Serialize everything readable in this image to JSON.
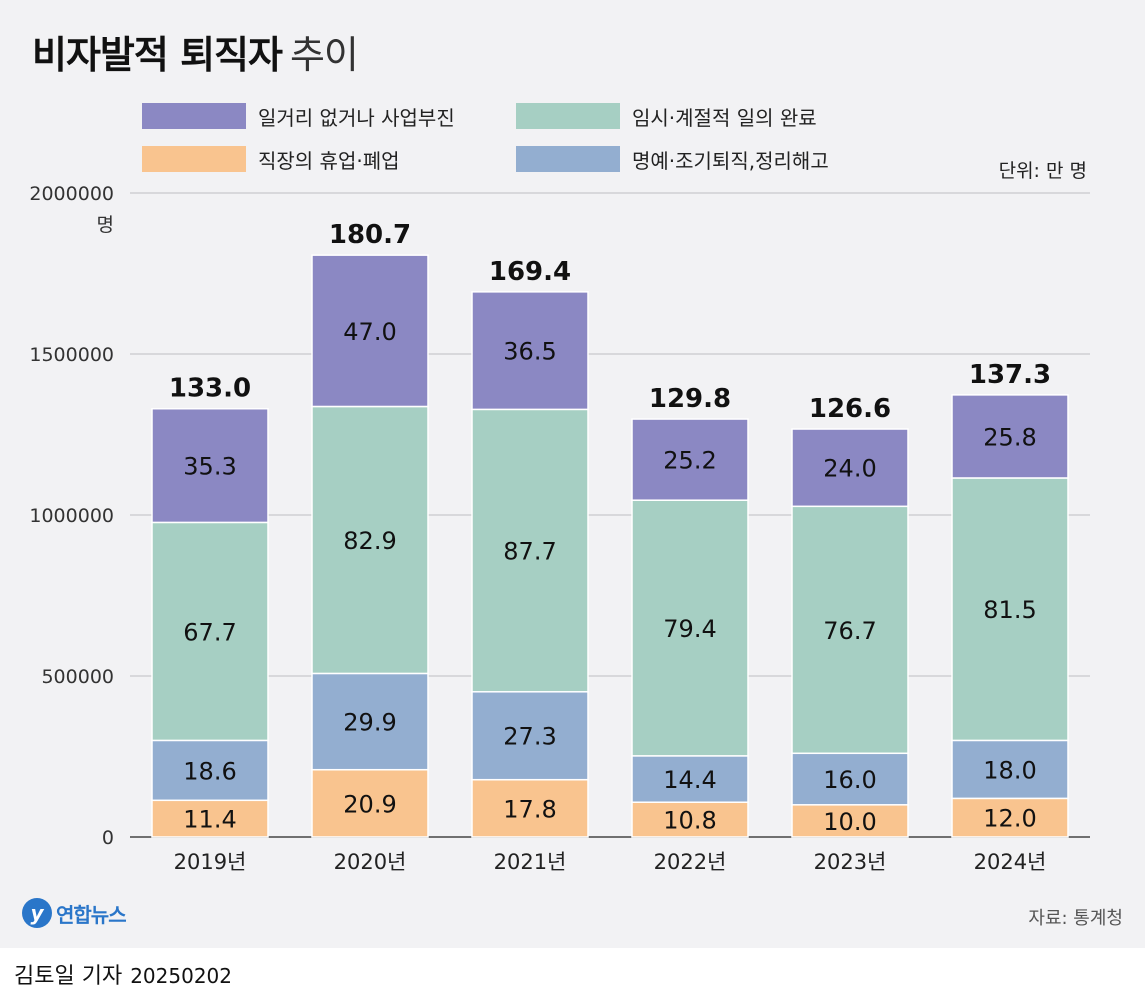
{
  "header": {
    "title": "비자발적 퇴직자",
    "subtitle": "추이"
  },
  "legend": [
    {
      "label": "일거리 없거나 사업부진",
      "color": "#8b88c3"
    },
    {
      "label": "임시·계절적 일의 완료",
      "color": "#a6cfc3"
    },
    {
      "label": "직장의 휴업·폐업",
      "color": "#f9c48f"
    },
    {
      "label": "명예·조기퇴직,정리해고",
      "color": "#93aed0"
    }
  ],
  "unit": "단위: 만 명",
  "source": "자료: 통계청",
  "logo": {
    "name": "연합뉴스"
  },
  "credit": {
    "author": "김토일 기자",
    "date": "20250202"
  },
  "chart_data": {
    "type": "bar",
    "stacked": true,
    "ylim": [
      0,
      2000000
    ],
    "yticks": [
      "0",
      "500000",
      "1000000",
      "1500000",
      "2000000"
    ],
    "ylabel": "명",
    "categories": [
      "2019년",
      "2020년",
      "2021년",
      "2022년",
      "2023년",
      "2024년"
    ],
    "totals": [
      "133.0",
      "180.7",
      "169.4",
      "129.8",
      "126.6",
      "137.3"
    ],
    "series": [
      {
        "name": "직장의 휴업·폐업",
        "color": "#f9c48f",
        "values": [
          11.4,
          20.9,
          17.8,
          10.8,
          10.0,
          12.0
        ],
        "labels": [
          "11.4",
          "20.9",
          "17.8",
          "10.8",
          "10.0",
          "12.0"
        ]
      },
      {
        "name": "명예·조기퇴직,정리해고",
        "color": "#93aed0",
        "values": [
          18.6,
          29.9,
          27.3,
          14.4,
          16.0,
          18.0
        ],
        "labels": [
          "18.6",
          "29.9",
          "27.3",
          "14.4",
          "16.0",
          "18.0"
        ]
      },
      {
        "name": "임시·계절적 일의 완료",
        "color": "#a6cfc3",
        "values": [
          67.7,
          82.9,
          87.7,
          79.4,
          76.7,
          81.5
        ],
        "labels": [
          "67.7",
          "82.9",
          "87.7",
          "79.4",
          "76.7",
          "81.5"
        ]
      },
      {
        "name": "일거리 없거나 사업부진",
        "color": "#8b88c3",
        "values": [
          35.3,
          47.0,
          36.5,
          25.2,
          24.0,
          25.8
        ],
        "labels": [
          "35.3",
          "47.0",
          "36.5",
          "25.2",
          "24.0",
          "25.8"
        ]
      }
    ]
  }
}
